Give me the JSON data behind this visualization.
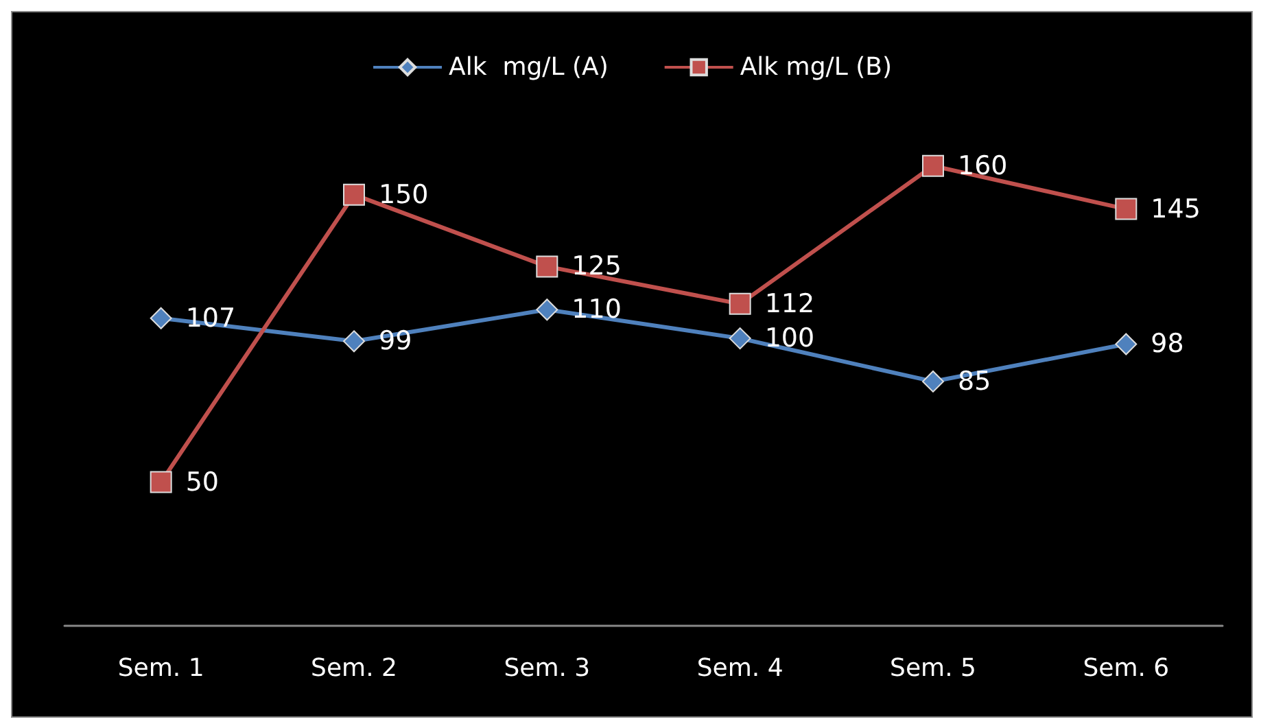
{
  "chart_data": {
    "type": "line",
    "categories": [
      "Sem. 1",
      "Sem. 2",
      "Sem. 3",
      "Sem. 4",
      "Sem. 5",
      "Sem. 6"
    ],
    "series": [
      {
        "name": "Alk  mg/L (A)",
        "color": "#4f81bd",
        "marker": "diamond",
        "values": [
          107,
          99,
          110,
          100,
          85,
          98
        ]
      },
      {
        "name": "Alk mg/L (B)",
        "color": "#c0504d",
        "marker": "square",
        "values": [
          50,
          150,
          125,
          112,
          160,
          145
        ]
      }
    ],
    "data_labels": true,
    "legend": "top",
    "grid": false
  }
}
